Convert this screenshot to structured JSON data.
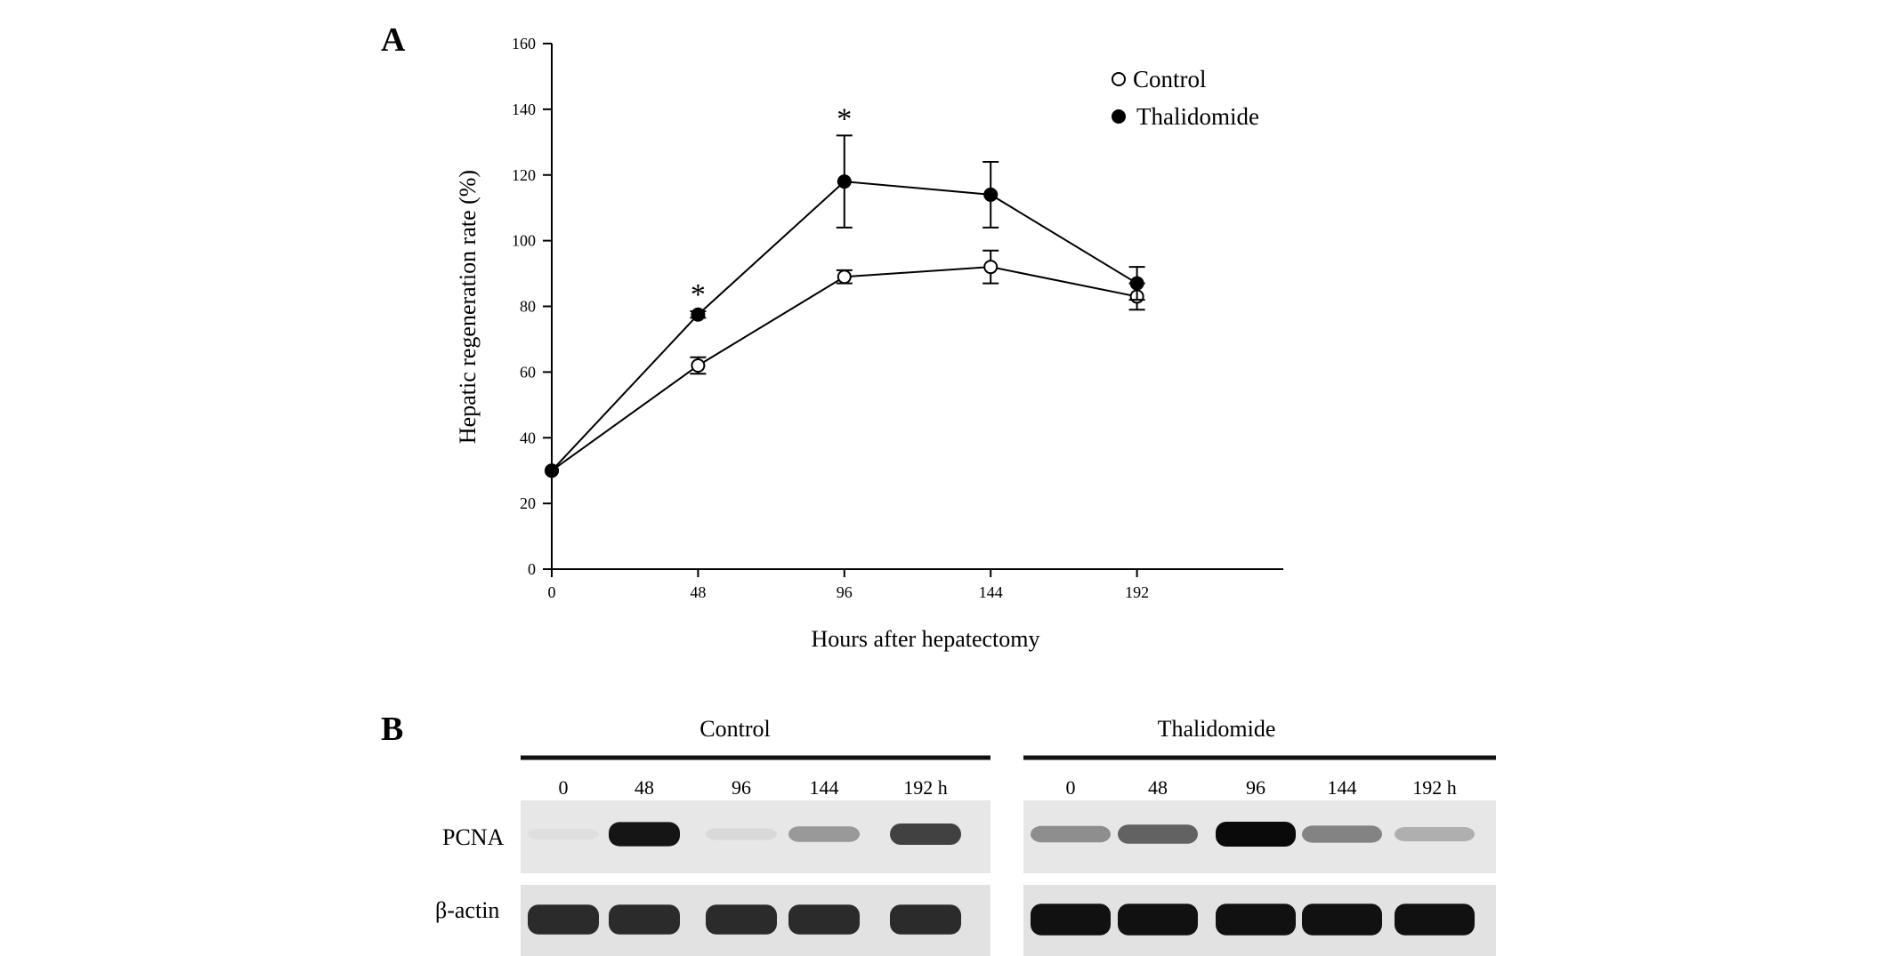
{
  "panels": {
    "a_label": "A",
    "b_label": "B"
  },
  "chart_data": {
    "type": "line",
    "xlabel": "Hours after hepatectomy",
    "ylabel": "Hepatic regeneration rate (%)",
    "x": [
      0,
      48,
      96,
      144,
      192
    ],
    "xticks": [
      "0",
      "48",
      "96",
      "144",
      "192"
    ],
    "xlim": [
      0,
      240
    ],
    "ylim": [
      0,
      160
    ],
    "yticks": [
      "0",
      "20",
      "40",
      "60",
      "80",
      "100",
      "120",
      "140",
      "160"
    ],
    "legend_position": "top-right",
    "series": [
      {
        "name": "Control",
        "marker": "open-circle",
        "color": "#000000",
        "values": [
          30,
          62,
          89,
          92,
          83
        ],
        "errors": [
          0,
          2.5,
          2,
          5,
          4
        ]
      },
      {
        "name": "Thalidomide",
        "marker": "filled-circle",
        "color": "#000000",
        "values": [
          30,
          77.5,
          118,
          114,
          87
        ],
        "errors": [
          0,
          1,
          14,
          10,
          5
        ]
      }
    ],
    "annotations": [
      {
        "text": "*",
        "x": 48
      },
      {
        "text": "*",
        "x": 96
      }
    ]
  },
  "blot": {
    "groups": [
      {
        "title": "Control",
        "lanes": [
          "0",
          "48",
          "96",
          "144",
          "192 h"
        ],
        "pcna_intensity": [
          0.03,
          0.95,
          0.06,
          0.35,
          0.75
        ],
        "actin_intensity": [
          0.85,
          0.85,
          0.85,
          0.85,
          0.85
        ]
      },
      {
        "title": "Thalidomide",
        "lanes": [
          "0",
          "48",
          "96",
          "144",
          "192 h"
        ],
        "pcna_intensity": [
          0.4,
          0.6,
          1.0,
          0.45,
          0.25
        ],
        "actin_intensity": [
          0.97,
          0.97,
          0.97,
          0.97,
          0.97
        ]
      }
    ],
    "row_labels": [
      "PCNA",
      "β-actin"
    ]
  }
}
